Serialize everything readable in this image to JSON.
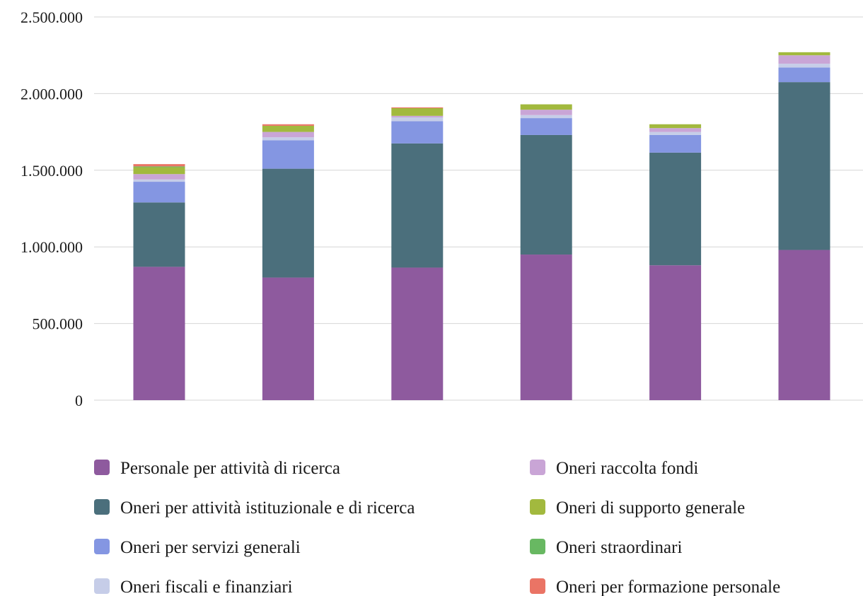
{
  "chart_data": {
    "type": "bar",
    "stacked": true,
    "title": "",
    "xlabel": "",
    "ylabel": "",
    "ylim": [
      0,
      2500000
    ],
    "yticks": [
      0,
      500000,
      1000000,
      1500000,
      2000000,
      2500000
    ],
    "ytick_labels": [
      "0",
      "500.000",
      "1.000.000",
      "1.500.000",
      "2.000.000",
      "2.500.000"
    ],
    "grid": true,
    "legend_position": "bottom",
    "categories": [
      "",
      "",
      "",
      "",
      "",
      ""
    ],
    "series": [
      {
        "name": "Personale per attività di ricerca",
        "color": "#8e5a9e",
        "values": [
          870000,
          800000,
          865000,
          950000,
          880000,
          980000
        ]
      },
      {
        "name": "Oneri per attività istituzionale e di ricerca",
        "color": "#4b6f7c",
        "values": [
          420000,
          710000,
          810000,
          780000,
          735000,
          1095000
        ]
      },
      {
        "name": "Oneri per servizi generali",
        "color": "#8496e2",
        "values": [
          135000,
          185000,
          145000,
          110000,
          115000,
          95000
        ]
      },
      {
        "name": "Oneri fiscali e finanziari",
        "color": "#c6cde8",
        "values": [
          15000,
          20000,
          25000,
          20000,
          20000,
          25000
        ]
      },
      {
        "name": "Oneri raccolta fondi",
        "color": "#c9a5d6",
        "values": [
          35000,
          35000,
          10000,
          35000,
          25000,
          55000
        ]
      },
      {
        "name": "Oneri di supporto generale",
        "color": "#a2b93e",
        "values": [
          45000,
          40000,
          50000,
          35000,
          25000,
          20000
        ]
      },
      {
        "name": "Oneri straordinari",
        "color": "#68b862",
        "values": [
          5000,
          0,
          0,
          0,
          0,
          0
        ]
      },
      {
        "name": "Oneri per formazione personale",
        "color": "#ea7465",
        "values": [
          15000,
          10000,
          5000,
          0,
          0,
          0
        ]
      }
    ]
  }
}
